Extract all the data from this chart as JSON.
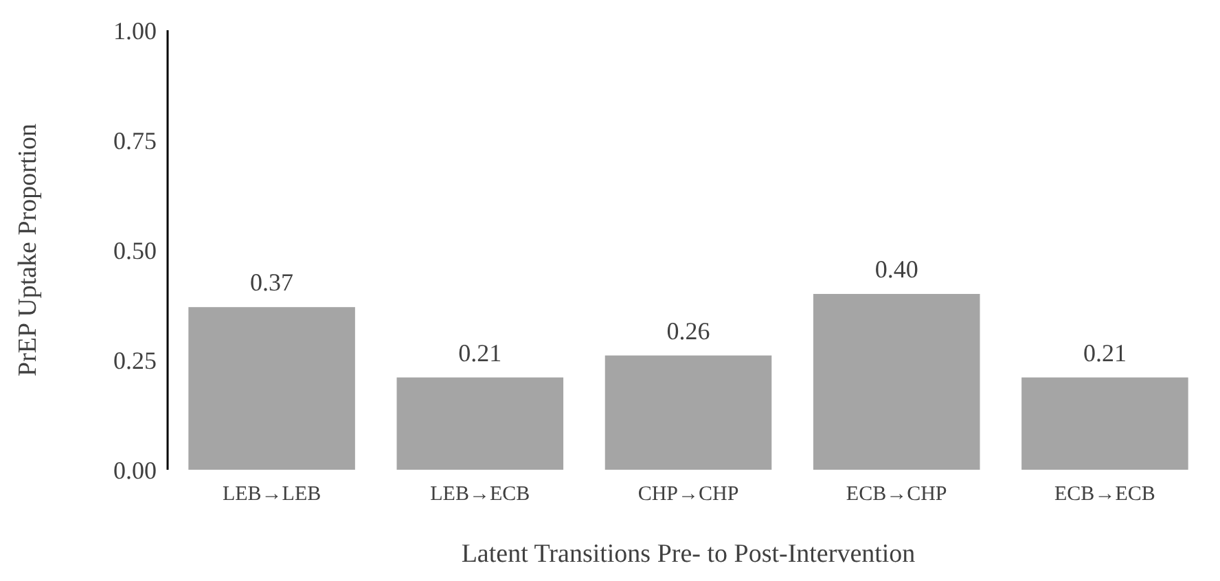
{
  "chart_data": {
    "type": "bar",
    "xlabel": "Latent Transitions Pre- to Post-Intervention",
    "ylabel": "PrEP Uptake Proportion",
    "categories": [
      "LEB→LEB",
      "LEB→ECB",
      "CHP→CHP",
      "ECB→CHP",
      "ECB→ECB"
    ],
    "values": [
      0.37,
      0.21,
      0.26,
      0.4,
      0.21
    ],
    "color": "#a5a5a5",
    "value_labels": [
      "0.37",
      "0.21",
      "0.26",
      "0.40",
      "0.21"
    ],
    "ylim": [
      0,
      1
    ],
    "yticks": [
      {
        "value": 0,
        "label": "0.00"
      },
      {
        "value": 0.25,
        "label": "0.25"
      },
      {
        "value": 0.5,
        "label": "0.50"
      },
      {
        "value": 0.75,
        "label": "0.75"
      },
      {
        "value": 1,
        "label": "1.00"
      }
    ],
    "grid": false
  }
}
